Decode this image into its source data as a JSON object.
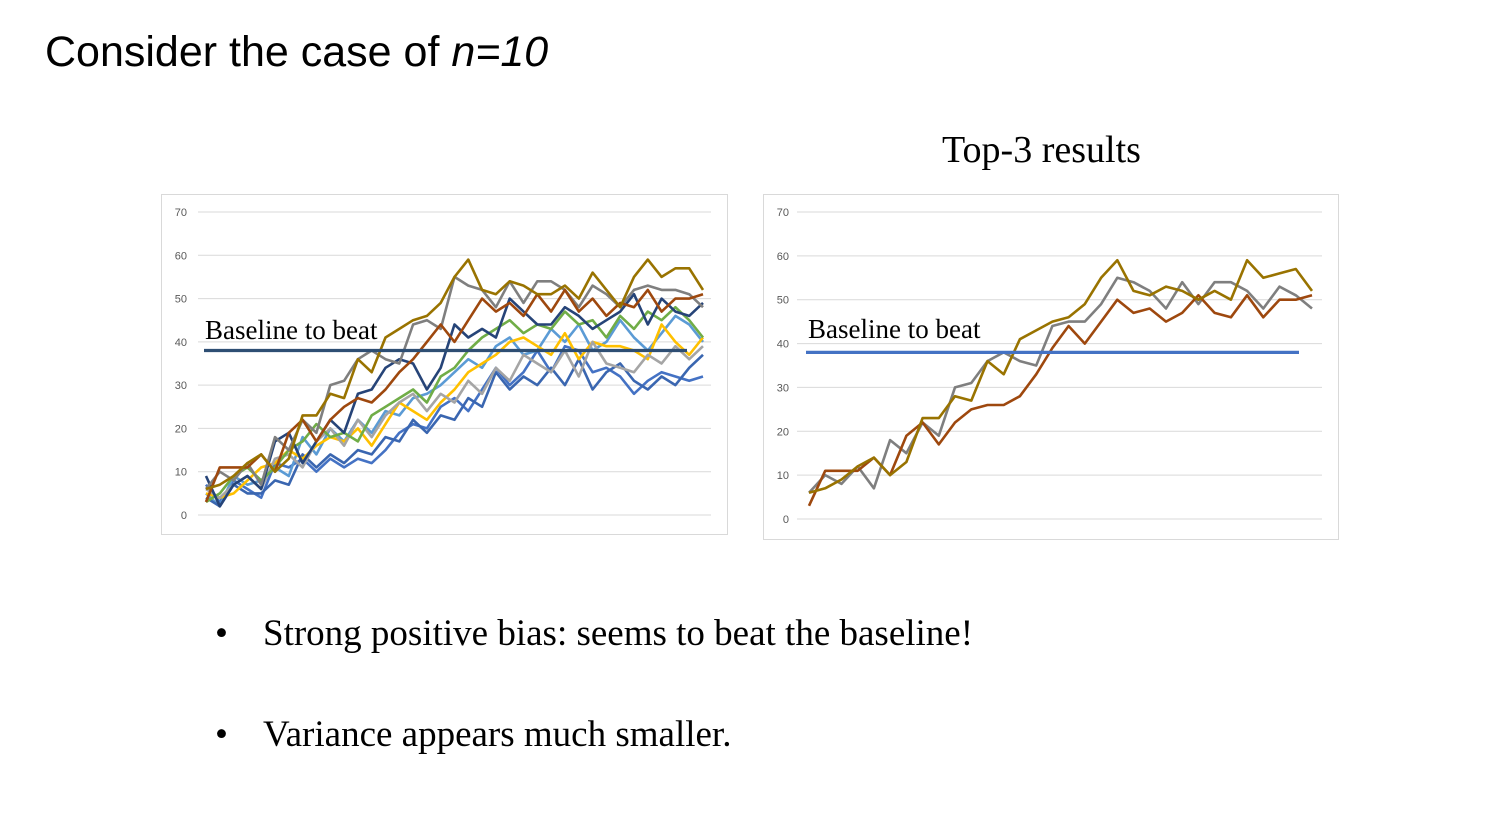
{
  "slide": {
    "title_prefix": "Consider the case of ",
    "title_math": "n=10",
    "right_title": "Top-3 results",
    "bullets": [
      "Strong positive bias:  seems to beat the baseline!",
      "Variance appears much smaller."
    ]
  },
  "chart_data": [
    {
      "type": "line",
      "ylim": [
        0,
        70
      ],
      "yticks": [
        0,
        10,
        20,
        30,
        40,
        50,
        60,
        70
      ],
      "grid": true,
      "baseline": {
        "label": "Baseline to beat",
        "value": 38,
        "color": "#2e4e73"
      },
      "series": [
        {
          "color": "#4472c4",
          "values": [
            7,
            3,
            8,
            6,
            4,
            12,
            11,
            13,
            10,
            13,
            11,
            13,
            12,
            15,
            19,
            21,
            20,
            25,
            27,
            24,
            29,
            34,
            30,
            33,
            38,
            33,
            39,
            38,
            33,
            34,
            32,
            28,
            31,
            33,
            32,
            31,
            32
          ]
        },
        {
          "color": "#5b9bd5",
          "values": [
            5,
            2,
            9,
            7,
            8,
            11,
            9,
            18,
            14,
            20,
            17,
            22,
            19,
            24,
            23,
            27,
            28,
            30,
            33,
            36,
            34,
            39,
            41,
            37,
            38,
            43,
            40,
            44,
            38,
            40,
            45,
            41,
            38,
            42,
            46,
            44,
            40
          ]
        },
        {
          "color": "#3a66b0",
          "values": [
            4,
            2,
            7,
            5,
            5,
            8,
            7,
            14,
            11,
            14,
            12,
            15,
            14,
            18,
            17,
            22,
            19,
            23,
            22,
            27,
            25,
            33,
            29,
            32,
            30,
            34,
            30,
            36,
            29,
            33,
            35,
            31,
            29,
            32,
            30,
            34,
            37
          ]
        },
        {
          "color": "#ffc000",
          "values": [
            5,
            4,
            5,
            8,
            11,
            12,
            15,
            13,
            16,
            18,
            17,
            20,
            16,
            21,
            26,
            24,
            22,
            26,
            29,
            33,
            35,
            37,
            40,
            41,
            39,
            37,
            42,
            36,
            40,
            39,
            39,
            38,
            36,
            44,
            40,
            37,
            41
          ]
        },
        {
          "color": "#a5a5a5",
          "values": [
            6,
            4,
            7,
            9,
            6,
            13,
            14,
            11,
            17,
            20,
            16,
            22,
            18,
            23,
            26,
            28,
            24,
            28,
            26,
            31,
            28,
            34,
            31,
            37,
            35,
            33,
            38,
            32,
            40,
            35,
            34,
            33,
            37,
            35,
            39,
            36,
            39
          ]
        },
        {
          "color": "#70ad47",
          "values": [
            3,
            5,
            9,
            11,
            8,
            11,
            15,
            17,
            21,
            18,
            19,
            17,
            23,
            25,
            27,
            29,
            26,
            32,
            34,
            38,
            41,
            43,
            45,
            42,
            44,
            43,
            47,
            44,
            45,
            41,
            46,
            43,
            47,
            45,
            48,
            45,
            41
          ]
        },
        {
          "color": "#264478",
          "values": [
            9,
            2,
            7,
            9,
            6,
            17,
            19,
            12,
            17,
            22,
            19,
            28,
            29,
            34,
            36,
            35,
            29,
            34,
            44,
            41,
            43,
            41,
            50,
            47,
            44,
            44,
            48,
            46,
            43,
            45,
            47,
            51,
            44,
            50,
            47,
            46,
            49
          ]
        },
        {
          "color": "#7f7f7f",
          "values": [
            6,
            10,
            8,
            12,
            7,
            18,
            15,
            22,
            19,
            30,
            31,
            36,
            38,
            36,
            35,
            44,
            45,
            43,
            55,
            53,
            52,
            48,
            54,
            49,
            54,
            54,
            52,
            48,
            53,
            51,
            48,
            52,
            53,
            52,
            52,
            51,
            48
          ]
        },
        {
          "color": "#9e480e",
          "values": [
            3,
            11,
            11,
            11,
            14,
            10,
            19,
            22,
            17,
            22,
            25,
            27,
            26,
            29,
            33,
            36,
            40,
            44,
            40,
            45,
            50,
            47,
            49,
            46,
            51,
            47,
            52,
            47,
            50,
            46,
            49,
            48,
            52,
            47,
            50,
            50,
            51
          ]
        },
        {
          "color": "#997300",
          "values": [
            6,
            7,
            9,
            12,
            14,
            10,
            13,
            23,
            23,
            28,
            27,
            36,
            33,
            41,
            43,
            45,
            46,
            49,
            55,
            59,
            52,
            51,
            54,
            53,
            51,
            51,
            53,
            50,
            56,
            52,
            48,
            55,
            59,
            55,
            57,
            57,
            52
          ]
        }
      ]
    },
    {
      "type": "line",
      "title": "Top-3 results",
      "ylim": [
        0,
        70
      ],
      "yticks": [
        0,
        10,
        20,
        30,
        40,
        50,
        60,
        70
      ],
      "grid": true,
      "baseline": {
        "label": "Baseline to beat",
        "value": 38,
        "color": "#4472c4"
      },
      "series": [
        {
          "color": "#7f7f7f",
          "values": [
            6,
            10,
            8,
            12,
            7,
            18,
            15,
            22,
            19,
            30,
            31,
            36,
            38,
            36,
            35,
            44,
            45,
            45,
            49,
            55,
            54,
            52,
            48,
            54,
            49,
            54,
            54,
            52,
            48,
            53,
            51,
            48
          ]
        },
        {
          "color": "#9e480e",
          "values": [
            3,
            11,
            11,
            11,
            14,
            10,
            19,
            22,
            17,
            22,
            25,
            26,
            26,
            28,
            33,
            39,
            44,
            40,
            45,
            50,
            47,
            48,
            45,
            47,
            51,
            47,
            46,
            51,
            46,
            50,
            50,
            51
          ]
        },
        {
          "color": "#997300",
          "values": [
            6,
            7,
            9,
            12,
            14,
            10,
            13,
            23,
            23,
            28,
            27,
            36,
            33,
            41,
            43,
            45,
            46,
            49,
            55,
            59,
            52,
            51,
            53,
            52,
            50,
            52,
            50,
            59,
            55,
            56,
            57,
            52
          ]
        }
      ]
    }
  ]
}
